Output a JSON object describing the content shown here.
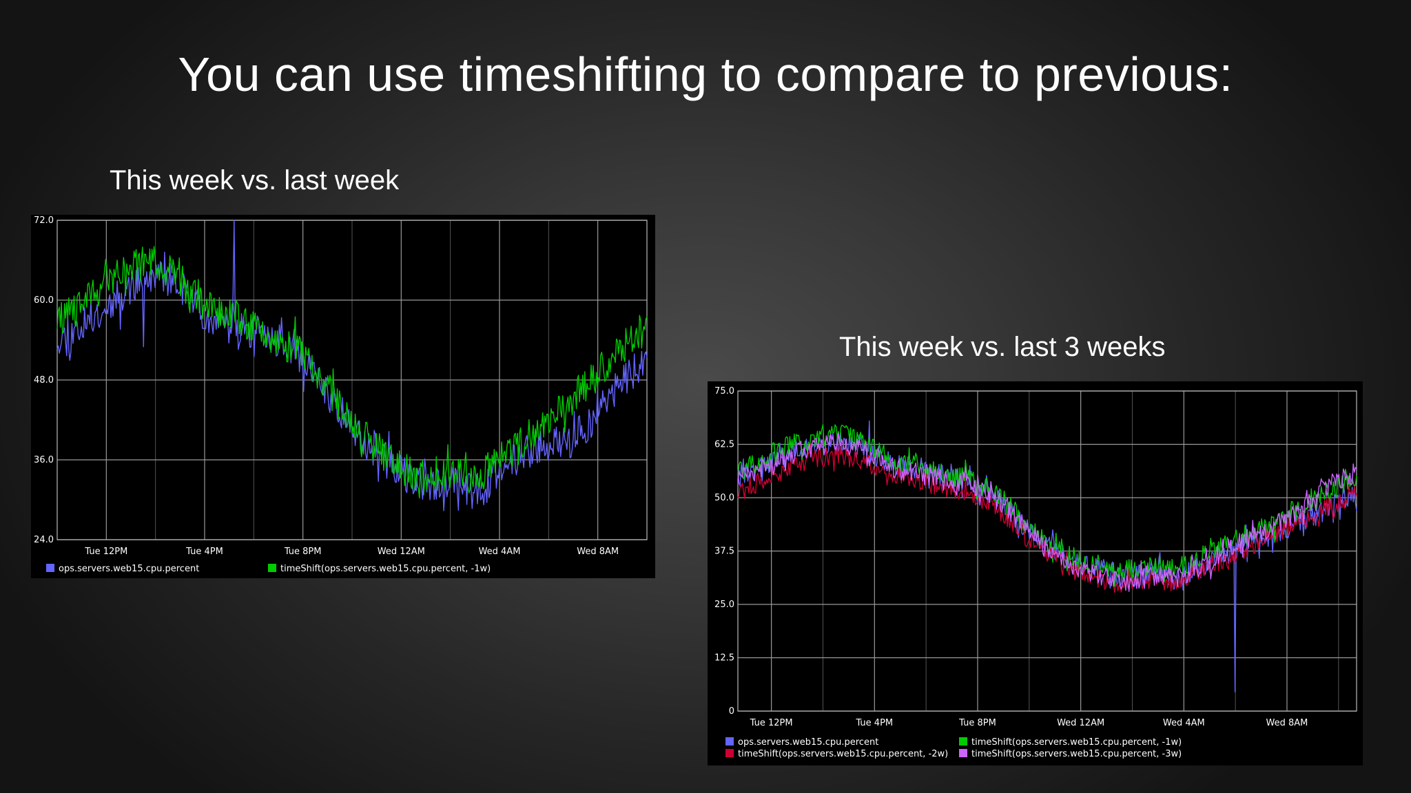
{
  "slide": {
    "title": "You can use timeshifting to compare to previous:"
  },
  "chart_data": [
    {
      "type": "line",
      "caption": "This week vs. last week",
      "ylim": [
        24.0,
        72.0
      ],
      "y_ticks": [
        "72.0",
        "60.0",
        "48.0",
        "36.0",
        "24.0"
      ],
      "x_range_hours": [
        0,
        24
      ],
      "x_ticks": [
        {
          "label": "Tue 12PM",
          "hour": 2
        },
        {
          "label": "Tue 4PM",
          "hour": 6
        },
        {
          "label": "Tue 8PM",
          "hour": 10
        },
        {
          "label": "Wed 12AM",
          "hour": 14
        },
        {
          "label": "Wed 4AM",
          "hour": 18
        },
        {
          "label": "Wed 8AM",
          "hour": 22
        }
      ],
      "grid": true,
      "legend_position": "bottom",
      "series": [
        {
          "name": "ops.servers.web15.cpu.percent",
          "color": "#6464ff",
          "noise": 2.6,
          "seed": 11,
          "spikes": [
            {
              "hour": 7.2,
              "value": 72.0
            },
            {
              "hour": 3.5,
              "value": 53.0
            }
          ],
          "x": [
            0,
            1,
            2,
            3,
            4,
            5,
            6,
            7,
            8,
            9,
            10,
            11,
            12,
            13,
            14,
            15,
            16,
            17,
            18,
            19,
            20,
            21,
            22,
            23,
            24
          ],
          "y": [
            54,
            56,
            59,
            62,
            64,
            62,
            58,
            56,
            55,
            54,
            51,
            46,
            41,
            37,
            34,
            32,
            33,
            31,
            34,
            37,
            38,
            39,
            43,
            48,
            51
          ]
        },
        {
          "name": "timeShift(ops.servers.web15.cpu.percent, -1w)",
          "color": "#00cc00",
          "noise": 2.6,
          "seed": 29,
          "spikes": [],
          "x": [
            0,
            1,
            2,
            3,
            4,
            5,
            6,
            7,
            8,
            9,
            10,
            11,
            12,
            13,
            14,
            15,
            16,
            17,
            18,
            19,
            20,
            21,
            22,
            23,
            24
          ],
          "y": [
            57,
            59,
            63,
            65,
            66,
            63,
            59,
            58,
            56,
            54,
            52,
            47,
            41,
            38,
            35,
            33,
            34,
            33,
            36,
            39,
            42,
            45,
            49,
            53,
            55
          ]
        }
      ]
    },
    {
      "type": "line",
      "caption": "This week vs. last 3 weeks",
      "ylim": [
        0,
        75.0
      ],
      "y_ticks": [
        "75.0",
        "62.5",
        "50.0",
        "37.5",
        "25.0",
        "12.5",
        "0"
      ],
      "x_range_hours": [
        0,
        24
      ],
      "x_ticks": [
        {
          "label": "Tue 12PM",
          "hour": 1.3
        },
        {
          "label": "Tue 4PM",
          "hour": 5.3
        },
        {
          "label": "Tue 8PM",
          "hour": 9.3
        },
        {
          "label": "Wed 12AM",
          "hour": 13.3
        },
        {
          "label": "Wed 4AM",
          "hour": 17.3
        },
        {
          "label": "Wed 8AM",
          "hour": 21.3
        }
      ],
      "grid": true,
      "legend_position": "bottom",
      "series": [
        {
          "name": "ops.servers.web15.cpu.percent",
          "color": "#6464ff",
          "noise": 2.6,
          "seed": 41,
          "spikes": [
            {
              "hour": 5.1,
              "value": 68.0
            },
            {
              "hour": 19.3,
              "value": 4.5
            }
          ],
          "x": [
            0,
            1,
            2,
            3,
            4,
            5,
            6,
            7,
            8,
            9,
            10,
            11,
            12,
            13,
            14,
            15,
            16,
            17,
            18,
            19,
            20,
            21,
            22,
            23,
            24
          ],
          "y": [
            55,
            58,
            60,
            62,
            63,
            61,
            58,
            57,
            55,
            53,
            50,
            44,
            39,
            35,
            33,
            31,
            33,
            31,
            34,
            37,
            40,
            41,
            44,
            48,
            51
          ]
        },
        {
          "name": "timeShift(ops.servers.web15.cpu.percent, -1w)",
          "color": "#00cc00",
          "noise": 2.6,
          "seed": 57,
          "spikes": [],
          "x": [
            0,
            1,
            2,
            3,
            4,
            5,
            6,
            7,
            8,
            9,
            10,
            11,
            12,
            13,
            14,
            15,
            16,
            17,
            18,
            19,
            20,
            21,
            22,
            23,
            24
          ],
          "y": [
            56,
            59,
            62,
            64,
            65,
            62,
            59,
            58,
            56,
            54,
            51,
            45,
            40,
            36,
            34,
            33,
            34,
            33,
            36,
            39,
            42,
            45,
            48,
            52,
            54
          ]
        },
        {
          "name": "timeShift(ops.servers.web15.cpu.percent, -2w)",
          "color": "#cc0033",
          "noise": 2.2,
          "seed": 73,
          "spikes": [],
          "x": [
            0,
            1,
            2,
            3,
            4,
            5,
            6,
            7,
            8,
            9,
            10,
            11,
            12,
            13,
            14,
            15,
            16,
            17,
            18,
            19,
            20,
            21,
            22,
            23,
            24
          ],
          "y": [
            51,
            54,
            57,
            59,
            60,
            58,
            55,
            54,
            52,
            51,
            48,
            42,
            37,
            33,
            31,
            29,
            31,
            30,
            33,
            36,
            39,
            42,
            45,
            48,
            50
          ]
        },
        {
          "name": "timeShift(ops.servers.web15.cpu.percent, -3w)",
          "color": "#cc66ff",
          "noise": 2.4,
          "seed": 89,
          "spikes": [],
          "x": [
            0,
            1,
            2,
            3,
            4,
            5,
            6,
            7,
            8,
            9,
            10,
            11,
            12,
            13,
            14,
            15,
            16,
            17,
            18,
            19,
            20,
            21,
            22,
            23,
            24
          ],
          "y": [
            54,
            57,
            60,
            62,
            63,
            61,
            57,
            56,
            54,
            53,
            50,
            44,
            38,
            34,
            32,
            30,
            32,
            31,
            34,
            38,
            41,
            44,
            48,
            53,
            56
          ]
        }
      ]
    }
  ]
}
